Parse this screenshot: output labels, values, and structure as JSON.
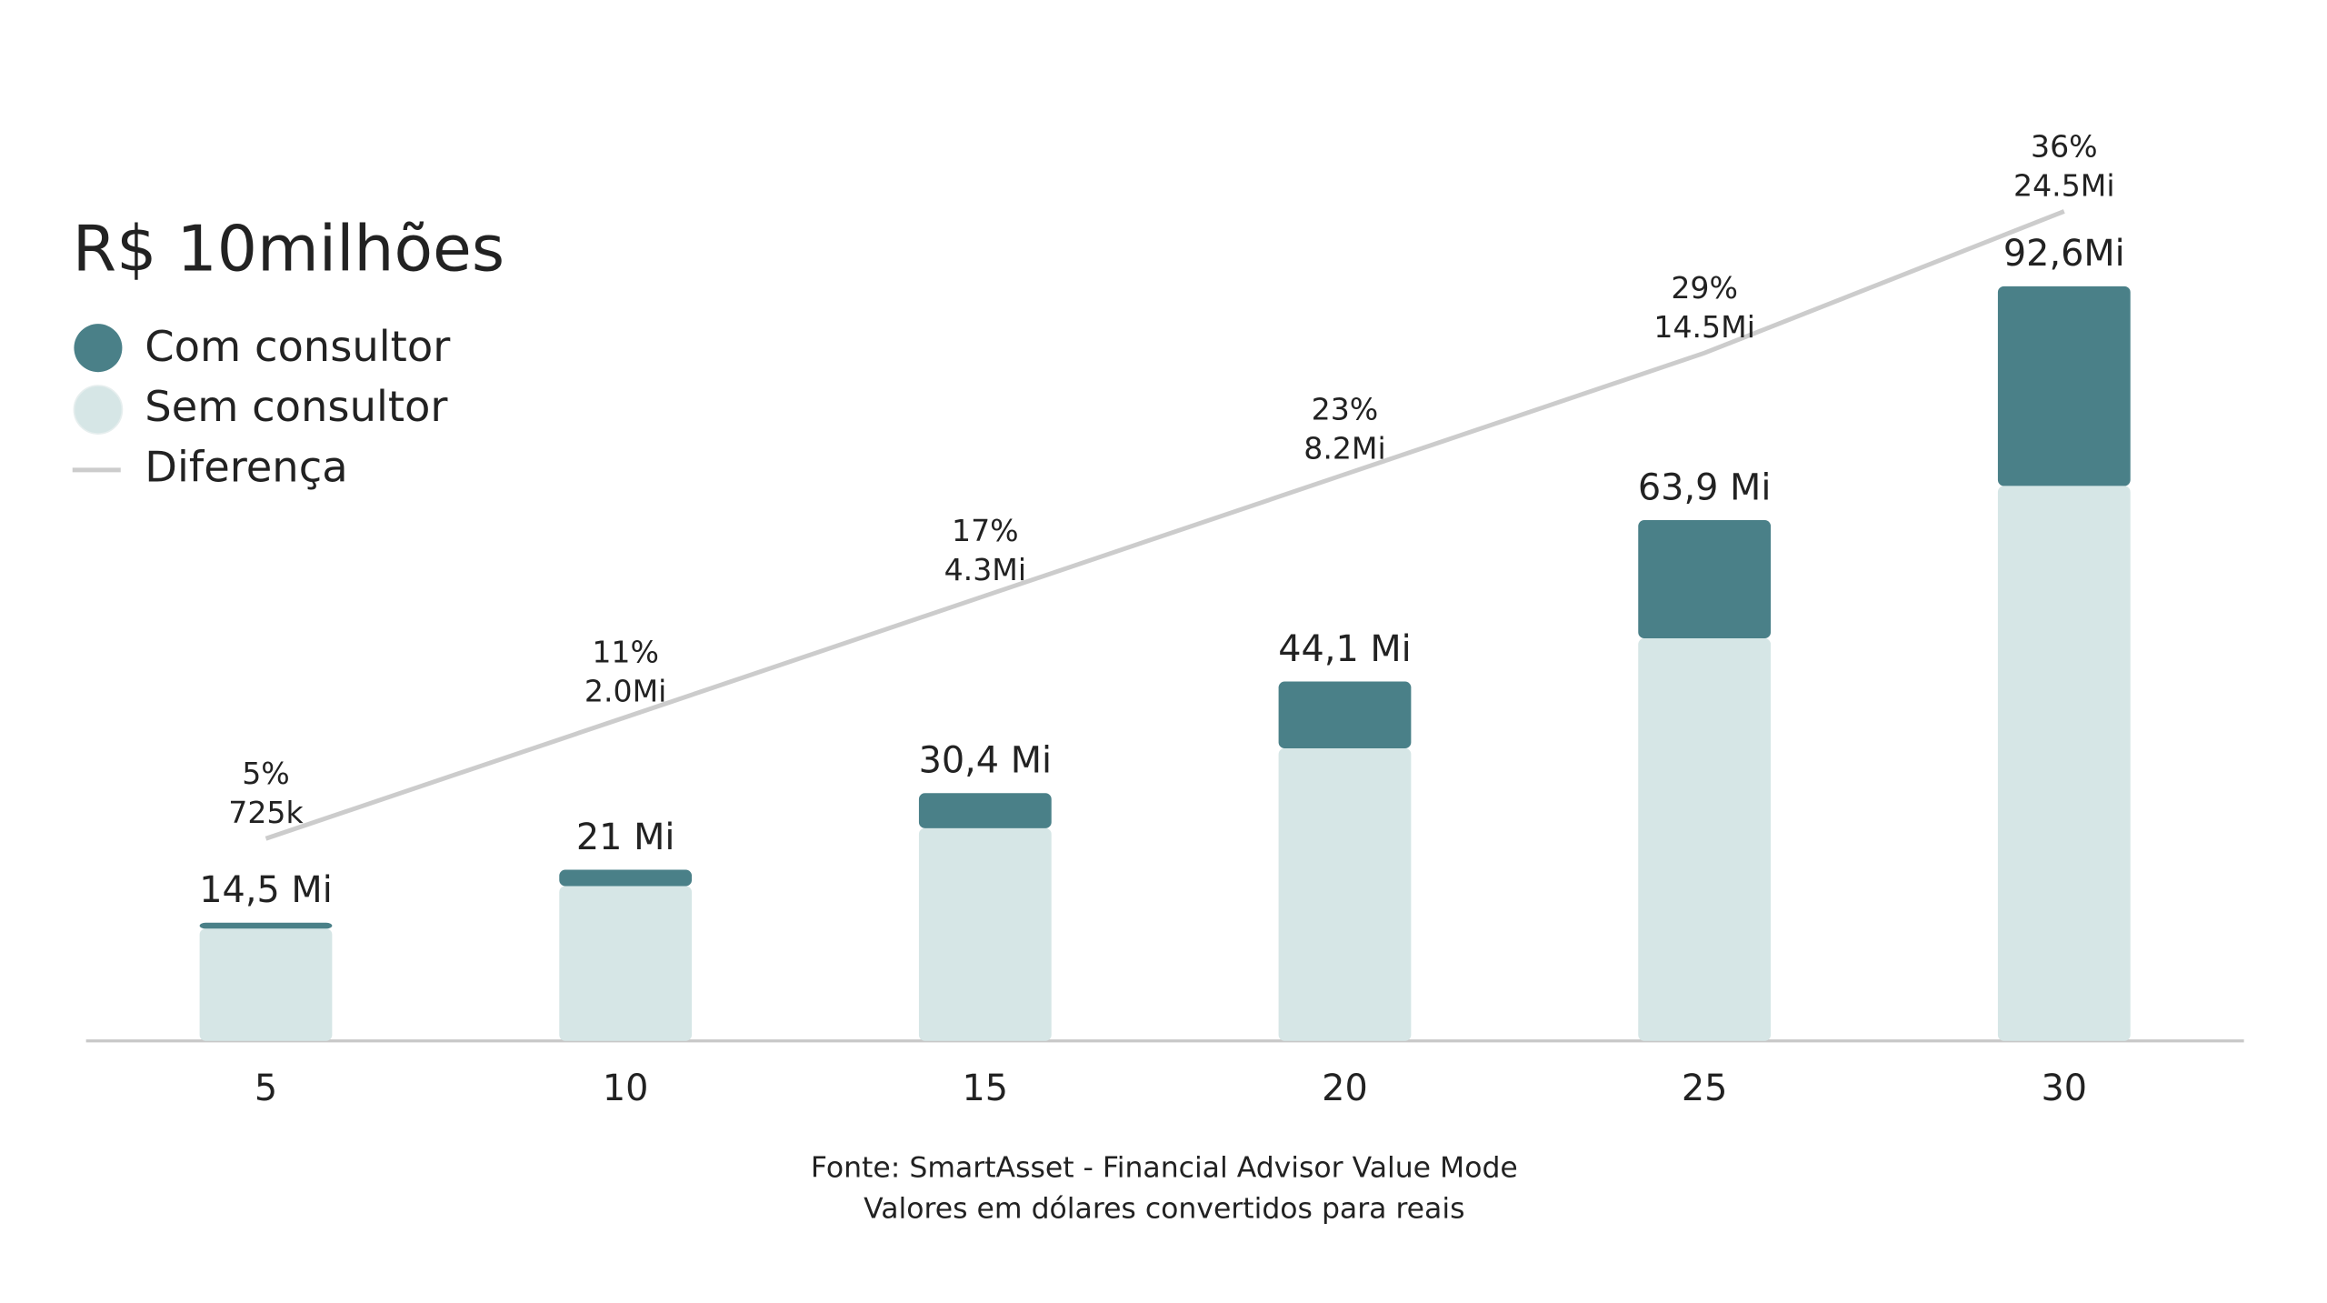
{
  "chart_data": {
    "type": "bar",
    "title": "R$ 10milhões",
    "categories": [
      "5",
      "10",
      "15",
      "20",
      "25",
      "30"
    ],
    "series": [
      {
        "name": "Sem consultor",
        "color": "#d6e6e6",
        "values": [
          13.775,
          19,
          26.1,
          35.9,
          49.4,
          68.1
        ]
      },
      {
        "name": "Com consultor",
        "color": "#4a8088",
        "values": [
          0.725,
          2.0,
          4.3,
          8.2,
          14.5,
          24.5
        ],
        "value_labels": [
          "725k",
          "2.0Mi",
          "4.3Mi",
          "8.2Mi",
          "14.5Mi",
          "24.5Mi"
        ]
      },
      {
        "name": "Diferença",
        "color": "#cccccc",
        "axis": "y2",
        "values": [
          5,
          11,
          17,
          23,
          29,
          36
        ],
        "value_labels": [
          "5%",
          "11%",
          "17%",
          "23%",
          "29%",
          "36%"
        ]
      }
    ],
    "totals": [
      14.5,
      21,
      30.4,
      44.1,
      63.9,
      92.6
    ],
    "total_labels": [
      "14,5 Mi",
      "21 Mi",
      "30,4 Mi",
      "44,1 Mi",
      "63,9 Mi",
      "92,6Mi"
    ],
    "ylim": [
      0,
      100
    ],
    "y2lim": [
      -5,
      39
    ],
    "notes": [
      "Fonte: SmartAsset - Financial Advisor Value Mode",
      "Valores em dólares convertidos para reais"
    ]
  }
}
